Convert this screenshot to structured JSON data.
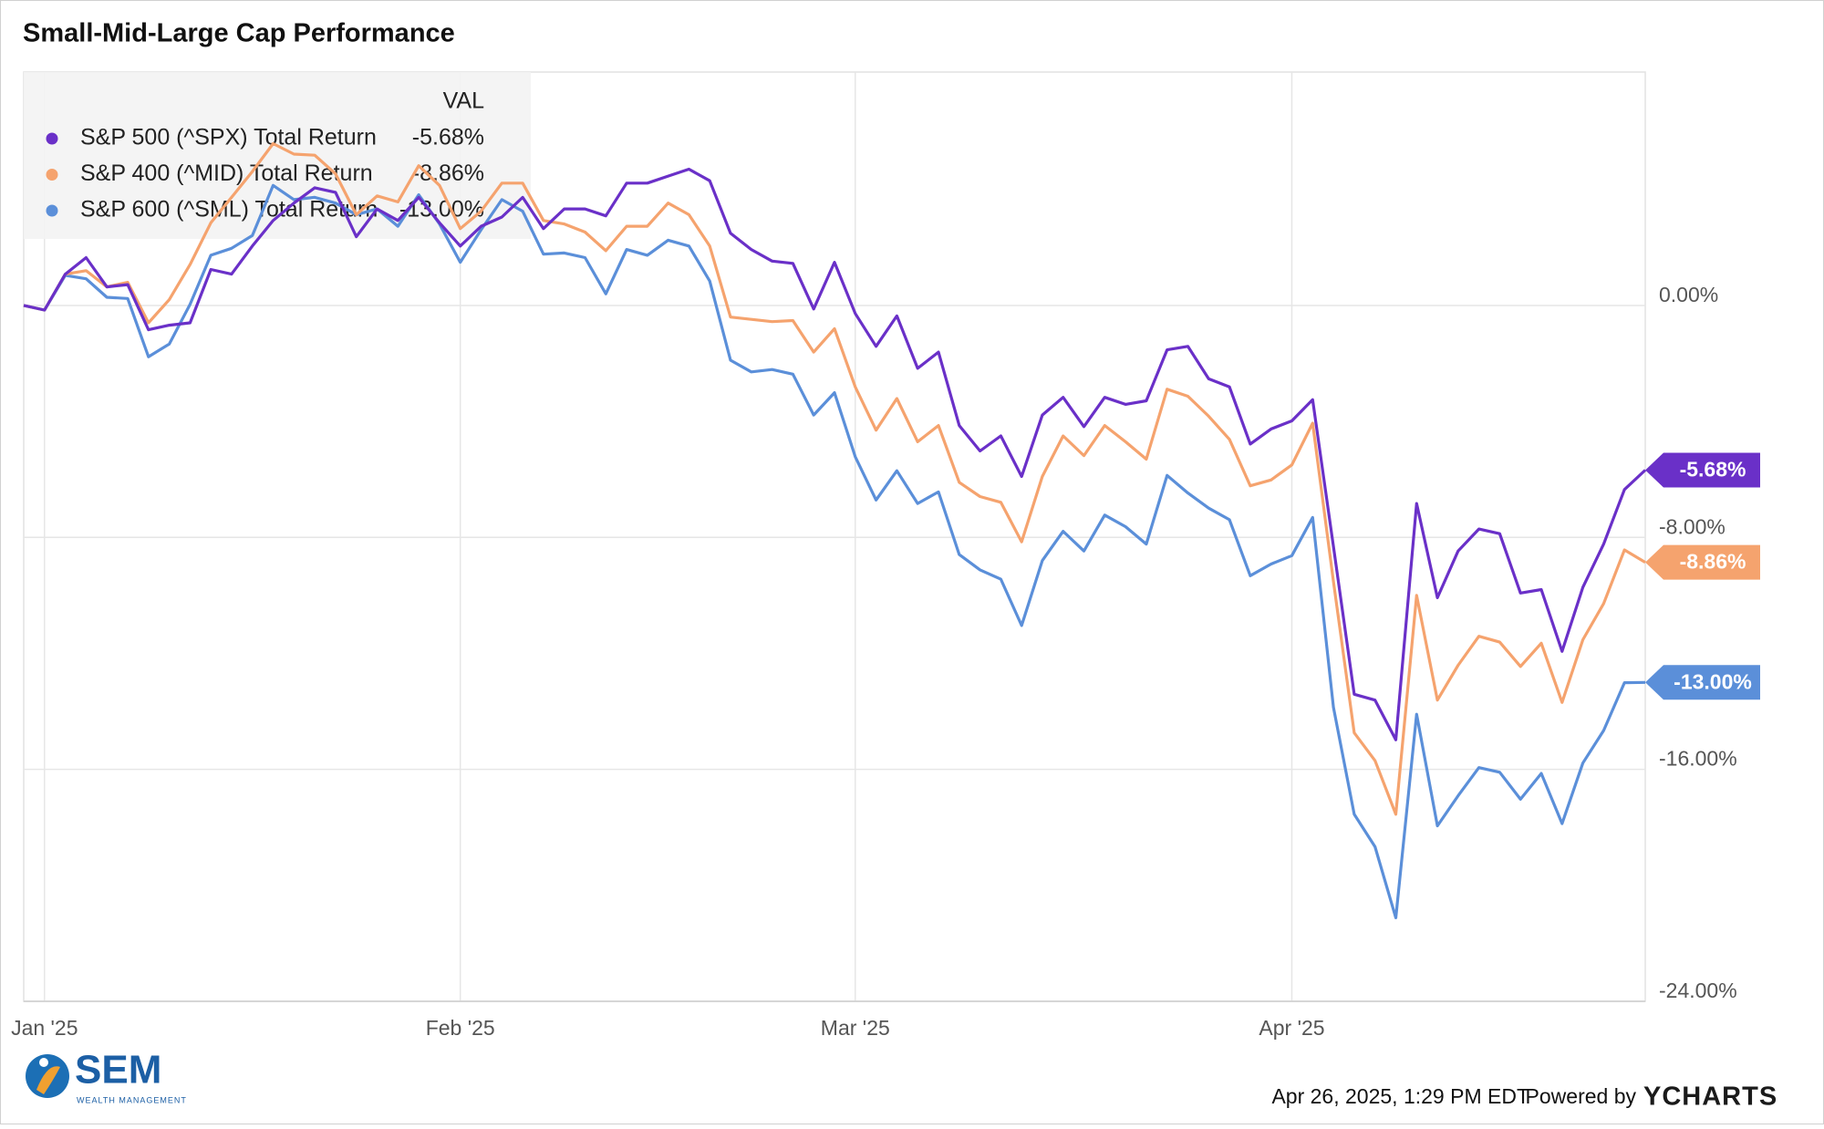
{
  "chart_data": {
    "type": "line",
    "title": "Small-Mid-Large Cap Performance",
    "legend_header": "VAL",
    "categories": [
      null,
      "Jan '25",
      null,
      null,
      null,
      null,
      null,
      null,
      null,
      null,
      null,
      null,
      null,
      null,
      null,
      null,
      null,
      null,
      null,
      null,
      null,
      "Feb '25",
      null,
      null,
      null,
      null,
      null,
      null,
      null,
      null,
      null,
      null,
      null,
      null,
      null,
      null,
      null,
      null,
      null,
      null,
      "Mar '25",
      null,
      null,
      null,
      null,
      null,
      null,
      null,
      null,
      null,
      null,
      null,
      null,
      null,
      null,
      null,
      null,
      null,
      null,
      null,
      null,
      "Apr '25",
      null,
      null,
      null,
      null,
      null,
      null,
      null,
      null,
      null,
      null,
      null,
      null,
      null,
      null,
      null,
      null,
      null
    ],
    "series": [
      {
        "name": "S&P 500 (^SPX) Total Return",
        "color": "#6a30c8",
        "last_value_label": "-5.68%",
        "values": [
          0,
          -0.16,
          1.08,
          1.65,
          0.64,
          0.72,
          -0.84,
          -0.68,
          -0.6,
          1.24,
          1.08,
          2.05,
          2.93,
          3.53,
          4.06,
          3.9,
          2.37,
          3.33,
          2.93,
          3.73,
          2.85,
          2.05,
          2.73,
          3.05,
          3.73,
          2.65,
          3.33,
          3.33,
          3.09,
          4.22,
          4.22,
          4.46,
          4.7,
          4.3,
          2.49,
          1.93,
          1.53,
          1.45,
          -0.12,
          1.49,
          -0.28,
          -1.41,
          -0.36,
          -2.17,
          -1.61,
          -4.14,
          -5.02,
          -4.5,
          -5.9,
          -3.78,
          -3.17,
          -4.18,
          -3.17,
          -3.41,
          -3.29,
          -1.53,
          -1.41,
          -2.53,
          -2.81,
          -4.78,
          -4.26,
          -3.98,
          -3.25,
          -8.31,
          -13.41,
          -13.61,
          -14.98,
          -6.83,
          -10.08,
          -8.47,
          -7.71,
          -7.87,
          -9.92,
          -9.8,
          -11.93,
          -9.72,
          -8.23,
          -6.35,
          -5.68
        ]
      },
      {
        "name": "S&P 400 (^MID) Total Return",
        "color": "#f5a36e",
        "last_value_label": "-8.86%",
        "values": [
          0,
          -0.16,
          1.08,
          1.2,
          0.64,
          0.8,
          -0.6,
          0.2,
          1.41,
          2.85,
          3.73,
          4.62,
          5.58,
          5.22,
          5.18,
          4.54,
          3.13,
          3.78,
          3.57,
          4.82,
          4.14,
          2.65,
          3.25,
          4.22,
          4.22,
          2.93,
          2.81,
          2.53,
          1.89,
          2.73,
          2.73,
          3.53,
          3.13,
          2.05,
          -0.4,
          -0.48,
          -0.56,
          -0.52,
          -1.61,
          -0.8,
          -2.81,
          -4.3,
          -3.21,
          -4.7,
          -4.14,
          -6.1,
          -6.59,
          -6.79,
          -8.15,
          -5.9,
          -4.5,
          -5.18,
          -4.14,
          -4.7,
          -5.3,
          -2.89,
          -3.13,
          -3.82,
          -4.62,
          -6.22,
          -6.02,
          -5.5,
          -4.06,
          -9.52,
          -14.74,
          -15.7,
          -17.55,
          -10,
          -13.61,
          -12.41,
          -11.41,
          -11.61,
          -12.45,
          -11.65,
          -13.69,
          -11.53,
          -10.28,
          -8.43,
          -8.86
        ]
      },
      {
        "name": "S&P 600 (^SML) Total Return",
        "color": "#5b8fd9",
        "last_value_label": "-13.00%",
        "values": [
          0,
          -0.16,
          1.04,
          0.92,
          0.28,
          0.24,
          -1.77,
          -1.33,
          0.04,
          1.73,
          1.97,
          2.41,
          4.14,
          3.65,
          3.73,
          3.53,
          3.13,
          3.33,
          2.73,
          3.82,
          2.81,
          1.49,
          2.61,
          3.65,
          3.25,
          1.77,
          1.81,
          1.65,
          0.4,
          1.93,
          1.73,
          2.25,
          2.05,
          0.84,
          -1.89,
          -2.29,
          -2.21,
          -2.37,
          -3.78,
          -3.01,
          -5.22,
          -6.71,
          -5.7,
          -6.83,
          -6.43,
          -8.59,
          -9.12,
          -9.44,
          -11.04,
          -8.8,
          -7.79,
          -8.47,
          -7.23,
          -7.63,
          -8.23,
          -5.86,
          -6.47,
          -6.99,
          -7.39,
          -9.32,
          -8.92,
          -8.63,
          -7.31,
          -13.86,
          -17.55,
          -18.67,
          -21.12,
          -14.1,
          -17.95,
          -16.91,
          -15.94,
          -16.1,
          -17.03,
          -16.14,
          -17.87,
          -15.78,
          -14.66,
          -13.01,
          -13
        ]
      }
    ],
    "ylim": [
      -24,
      8.05
    ],
    "yticks": [
      {
        "value": 0,
        "label": "0.00%"
      },
      {
        "value": -8,
        "label": "-8.00%"
      },
      {
        "value": -16,
        "label": "-16.00%"
      },
      {
        "value": -24,
        "label": "-24.00%"
      }
    ],
    "grid": true,
    "legend": "upper left"
  },
  "footer": {
    "logo": "SEM",
    "logo_subtitle": "WEALTH MANAGEMENT",
    "timestamp": "Apr 26, 2025, 1:29 PM EDT",
    "powered_by": "Powered by",
    "brand": "YCHARTS"
  }
}
